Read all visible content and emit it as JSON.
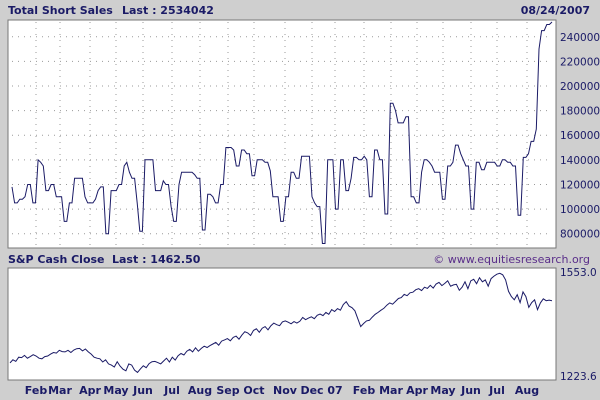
{
  "header": {
    "title": "Total Short Sales",
    "last_label": "Last : 2534042",
    "date": "08/24/2007"
  },
  "sp_header": {
    "title": "S&P Cash Close",
    "last_label": "Last : 1462.50",
    "url": "© www.equitiesresearch.org"
  },
  "chart_data": [
    {
      "type": "line",
      "title": "Total Short Sales",
      "last": 2534042,
      "date": "08/24/2007",
      "color": "#1a1a66",
      "ylim": [
        700000,
        2520000
      ],
      "yticks": [
        "800000",
        "1000000",
        "1200000",
        "1400000",
        "1600000",
        "1800000",
        "2000000",
        "2200000",
        "2400000"
      ],
      "xticks": [
        "Feb",
        "Mar",
        "Apr",
        "May",
        "Jun",
        "Jul",
        "Aug",
        "Sep",
        "Oct",
        "Nov",
        "Dec",
        "07",
        "Feb",
        "Mar",
        "Apr",
        "May",
        "Jun",
        "Jul",
        "Aug"
      ],
      "grid": true,
      "series": [
        {
          "values": [
            1180000,
            1050000,
            1050000,
            1080000,
            1080000,
            1100000,
            1200000,
            1200000,
            1050000,
            1050000,
            1400000,
            1380000,
            1350000,
            1150000,
            1150000,
            1200000,
            1200000,
            1100000,
            1100000,
            1100000,
            900000,
            900000,
            1050000,
            1050000,
            1250000,
            1250000,
            1250000,
            1250000,
            1100000,
            1050000,
            1050000,
            1050000,
            1080000,
            1150000,
            1180000,
            1180000,
            800000,
            800000,
            1150000,
            1150000,
            1150000,
            1200000,
            1200000,
            1350000,
            1380000,
            1300000,
            1250000,
            1250000,
            1050000,
            820000,
            820000,
            1400000,
            1400000,
            1400000,
            1400000,
            1150000,
            1150000,
            1150000,
            1230000,
            1200000,
            1200000,
            1020000,
            900000,
            900000,
            1200000,
            1300000,
            1300000,
            1300000,
            1300000,
            1300000,
            1280000,
            1250000,
            1250000,
            830000,
            830000,
            1120000,
            1120000,
            1100000,
            1050000,
            1050000,
            1200000,
            1200000,
            1500000,
            1500000,
            1500000,
            1480000,
            1350000,
            1350000,
            1480000,
            1480000,
            1450000,
            1450000,
            1270000,
            1270000,
            1400000,
            1400000,
            1400000,
            1380000,
            1380000,
            1310000,
            1100000,
            1100000,
            1100000,
            900000,
            900000,
            1100000,
            1100000,
            1300000,
            1300000,
            1250000,
            1250000,
            1430000,
            1430000,
            1430000,
            1430000,
            1100000,
            1050000,
            1020000,
            1020000,
            720000,
            720000,
            1400000,
            1400000,
            1400000,
            1000000,
            1000000,
            1400000,
            1400000,
            1150000,
            1150000,
            1250000,
            1420000,
            1420000,
            1400000,
            1400000,
            1430000,
            1400000,
            1100000,
            1100000,
            1480000,
            1480000,
            1400000,
            1400000,
            960000,
            960000,
            1860000,
            1860000,
            1800000,
            1700000,
            1700000,
            1700000,
            1750000,
            1750000,
            1100000,
            1100000,
            1050000,
            1050000,
            1300000,
            1400000,
            1400000,
            1380000,
            1350000,
            1300000,
            1300000,
            1300000,
            1080000,
            1080000,
            1350000,
            1350000,
            1380000,
            1520000,
            1520000,
            1450000,
            1400000,
            1350000,
            1350000,
            1000000,
            1000000,
            1380000,
            1380000,
            1320000,
            1320000,
            1380000,
            1380000,
            1380000,
            1380000,
            1350000,
            1350000,
            1400000,
            1400000,
            1380000,
            1380000,
            1350000,
            1350000,
            950000,
            950000,
            1420000,
            1420000,
            1450000,
            1550000,
            1550000,
            1650000,
            2300000,
            2450000,
            2450000,
            2500000,
            2500000,
            2520000
          ]
        }
      ]
    },
    {
      "type": "line",
      "title": "S&P Cash Close",
      "last": 1462.5,
      "color": "#1a1a66",
      "ylim": [
        1223.6,
        1553.0
      ],
      "yticks": [
        "1223.6",
        "1553.0"
      ],
      "xticks": [
        "Feb",
        "Mar",
        "Apr",
        "May",
        "Jun",
        "Jul",
        "Aug",
        "Sep",
        "Oct",
        "Nov",
        "Dec",
        "07",
        "Feb",
        "Mar",
        "Apr",
        "May",
        "Jun",
        "Jul",
        "Aug"
      ],
      "grid": false,
      "series": [
        {
          "values": [
            1265,
            1275,
            1270,
            1283,
            1282,
            1289,
            1280,
            1285,
            1291,
            1287,
            1280,
            1278,
            1285,
            1287,
            1293,
            1298,
            1296,
            1305,
            1301,
            1300,
            1305,
            1298,
            1306,
            1310,
            1311,
            1303,
            1309,
            1300,
            1293,
            1283,
            1280,
            1278,
            1268,
            1275,
            1262,
            1258,
            1252,
            1269,
            1255,
            1245,
            1240,
            1262,
            1258,
            1242,
            1235,
            1246,
            1256,
            1250,
            1263,
            1269,
            1270,
            1266,
            1262,
            1271,
            1280,
            1268,
            1283,
            1274,
            1288,
            1295,
            1290,
            1302,
            1308,
            1300,
            1313,
            1302,
            1311,
            1318,
            1314,
            1320,
            1325,
            1330,
            1321,
            1334,
            1338,
            1342,
            1335,
            1346,
            1350,
            1340,
            1353,
            1364,
            1360,
            1352,
            1368,
            1373,
            1362,
            1375,
            1380,
            1370,
            1383,
            1391,
            1386,
            1383,
            1395,
            1398,
            1394,
            1389,
            1396,
            1391,
            1397,
            1409,
            1402,
            1407,
            1411,
            1405,
            1416,
            1420,
            1415,
            1425,
            1419,
            1434,
            1428,
            1437,
            1432,
            1450,
            1459,
            1445,
            1440,
            1430,
            1405,
            1380,
            1390,
            1398,
            1400,
            1410,
            1419,
            1425,
            1432,
            1438,
            1448,
            1455,
            1451,
            1460,
            1469,
            1472,
            1482,
            1478,
            1487,
            1489,
            1497,
            1500,
            1494,
            1505,
            1501,
            1511,
            1502,
            1515,
            1520,
            1510,
            1517,
            1525,
            1508,
            1512,
            1514,
            1495,
            1505,
            1522,
            1500,
            1525,
            1530,
            1516,
            1535,
            1522,
            1528,
            1508,
            1532,
            1540,
            1546,
            1549,
            1544,
            1528,
            1492,
            1475,
            1465,
            1481,
            1456,
            1490,
            1475,
            1441,
            1456,
            1465,
            1434,
            1455,
            1468,
            1462,
            1464,
            1462
          ]
        }
      ]
    }
  ]
}
